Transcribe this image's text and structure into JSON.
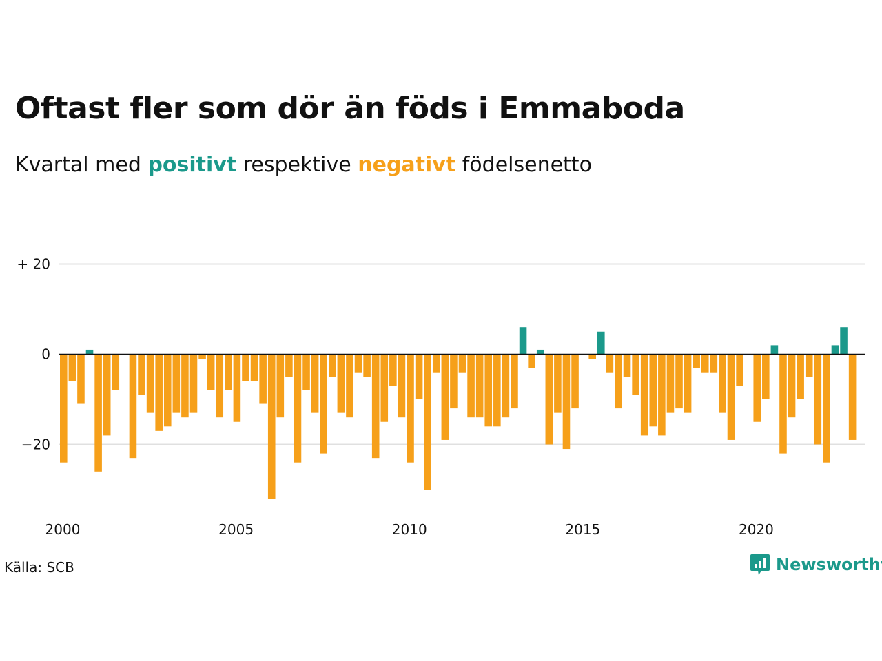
{
  "title": "Oftast fler som dör än föds i Emmaboda",
  "subtitle": {
    "prefix": "Kvartal med",
    "positive_word": "positivt",
    "middle": "respektive",
    "negative_word": "negativt",
    "suffix": "födelsenetto"
  },
  "source": "Källa: SCB",
  "brand": {
    "name": "Newsworthy",
    "icon": "newsworthy-logo-icon"
  },
  "colors": {
    "positive": "#1b998b",
    "negative": "#f6a01a",
    "grid": "#e0e0e0",
    "zero_line": "#111111"
  },
  "chart_data": {
    "type": "bar",
    "title": "Oftast fler som dör än föds i Emmaboda",
    "subtitle": "Kvartal med positivt respektive negativt födelsenetto",
    "xlabel": "",
    "ylabel": "",
    "ylim": [
      -35,
      27
    ],
    "xlim": [
      2000,
      2023.25
    ],
    "y_ticks": [
      {
        "value": 20,
        "label": "+ 20"
      },
      {
        "value": 0,
        "label": "0"
      },
      {
        "value": -20,
        "label": "−20"
      }
    ],
    "x_ticks": [
      {
        "value": 2000,
        "label": "2000"
      },
      {
        "value": 2005,
        "label": "2005"
      },
      {
        "value": 2010,
        "label": "2010"
      },
      {
        "value": 2015,
        "label": "2015"
      },
      {
        "value": 2020,
        "label": "2020"
      }
    ],
    "grid": true,
    "legend": "none",
    "series": [
      {
        "start": "2000 Q1",
        "period": "quarter",
        "values": [
          -24,
          -6,
          -11,
          1,
          -26,
          -18,
          -8,
          0,
          -23,
          -9,
          -13,
          -17,
          -16,
          -13,
          -14,
          -13,
          -1,
          -8,
          -14,
          -8,
          -15,
          -6,
          -6,
          -11,
          -32,
          -14,
          -5,
          -24,
          -8,
          -13,
          -22,
          -5,
          -13,
          -14,
          -4,
          -5,
          -23,
          -15,
          -7,
          -14,
          -24,
          -10,
          -30,
          -4,
          -19,
          -12,
          -4,
          -14,
          -14,
          -16,
          -16,
          -14,
          -12,
          6,
          -3,
          1,
          -20,
          -13,
          -21,
          -12,
          0,
          -1,
          5,
          -4,
          -12,
          -5,
          -9,
          -18,
          -16,
          -18,
          -13,
          -12,
          -13,
          -3,
          -4,
          -4,
          -13,
          -19,
          -7,
          0,
          -15,
          -10,
          2,
          -22,
          -14,
          -10,
          -5,
          -20,
          -24,
          2,
          6,
          -19
        ]
      }
    ]
  }
}
